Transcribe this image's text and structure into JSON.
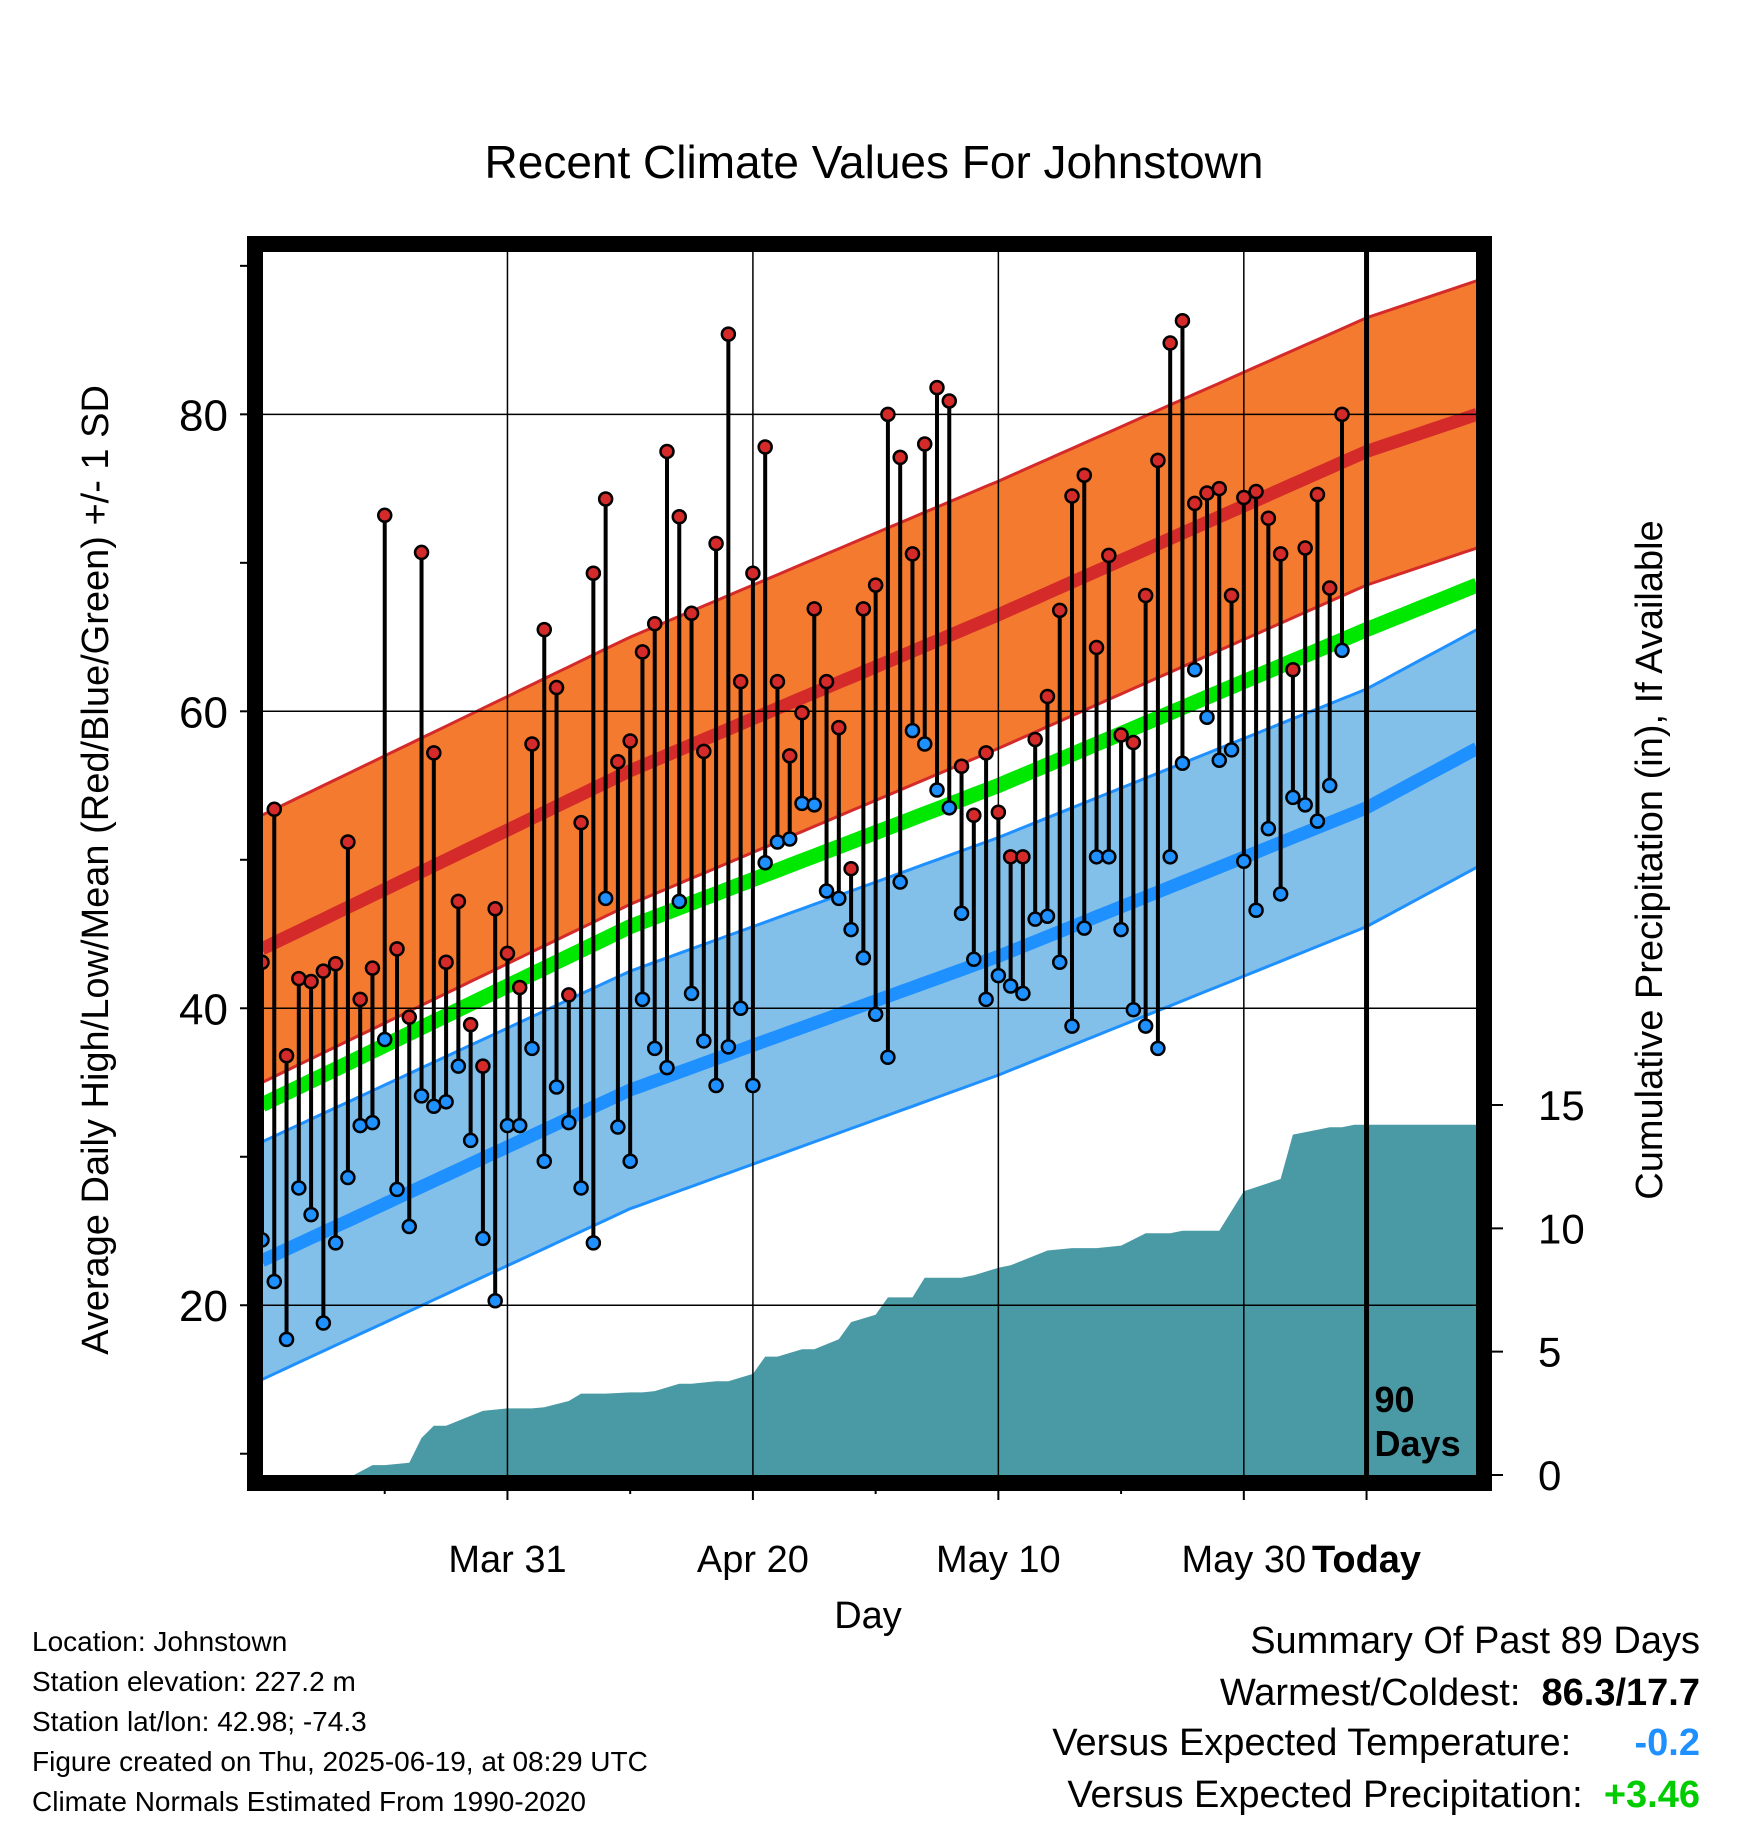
{
  "chart_data": {
    "type": "line",
    "title": "Recent Climate Values For Johnstown",
    "xlabel": "Day",
    "ylabel": "Average Daily High/Low/Mean (Red/Blue/Green) +/- 1 SD",
    "y2label": "Cumulative Precipitation (in), If Available",
    "x_tick_labels": [
      "Mar 31",
      "Apr 20",
      "May 10",
      "May 30",
      "Today"
    ],
    "y_ticks": [
      20,
      40,
      60,
      80
    ],
    "y2_ticks": [
      0,
      5,
      10,
      15
    ],
    "ylim": [
      8.5,
      91
    ],
    "y2lim": [
      0,
      15
    ],
    "x_domain_days": [
      -90,
      9
    ],
    "today_label": "90\nDays",
    "grid": true,
    "colors": {
      "high_band": "#f47a2f",
      "high_line": "#d42a2a",
      "low_band": "#82c0ea",
      "low_line": "#1e90ff",
      "mean_line": "#00e800",
      "precip": "#4a9aa5",
      "obs_high_dot": "#d42a2a",
      "obs_low_dot": "#1e90ff"
    },
    "normal_high": {
      "x": [
        -90,
        -60,
        -30,
        0,
        9
      ],
      "y": [
        44,
        56,
        66.5,
        77.5,
        80
      ]
    },
    "normal_low": {
      "x": [
        -90,
        -60,
        -30,
        0,
        9
      ],
      "y": [
        23,
        34.5,
        43.5,
        53.5,
        57.5
      ]
    },
    "normal_mean": {
      "x": [
        -90,
        -60,
        -30,
        0,
        9
      ],
      "y": [
        33.5,
        45.5,
        55,
        65.5,
        68.5
      ]
    },
    "sd_high": 9,
    "sd_low": 8,
    "observed_high": [
      43.1,
      53.4,
      36.8,
      42.0,
      41.8,
      42.5,
      43.0,
      51.2,
      40.6,
      42.7,
      73.2,
      44.0,
      39.4,
      70.7,
      57.2,
      43.1,
      47.2,
      38.9,
      36.1,
      46.7,
      43.7,
      41.4,
      57.8,
      65.5,
      61.6,
      40.9,
      52.5,
      69.3,
      74.3,
      56.6,
      58.0,
      64.0,
      65.9,
      77.5,
      73.1,
      66.6,
      57.3,
      71.3,
      85.4,
      62.0,
      69.3,
      77.8,
      62.0,
      57.0,
      59.9,
      66.9,
      62.0,
      58.9,
      49.4,
      66.9,
      68.5,
      80.0,
      77.1,
      70.6,
      78.0,
      81.8,
      80.9,
      56.3,
      53.0,
      57.2,
      53.2,
      50.2,
      50.2,
      58.1,
      61.0,
      66.8,
      74.5,
      75.9,
      64.3,
      70.5,
      58.4,
      57.9,
      67.8,
      76.9,
      84.8,
      86.3,
      74.0,
      74.7,
      75.0,
      67.8,
      74.4,
      74.8,
      73.0,
      70.6,
      62.8,
      71.0,
      74.6,
      68.3,
      80.0
    ],
    "observed_low": [
      24.4,
      21.6,
      17.7,
      27.9,
      26.1,
      18.8,
      24.2,
      28.6,
      32.1,
      32.3,
      37.9,
      27.8,
      25.3,
      34.1,
      33.4,
      33.7,
      36.1,
      31.1,
      24.5,
      20.3,
      32.1,
      32.1,
      37.3,
      29.7,
      34.7,
      32.3,
      27.9,
      24.2,
      47.4,
      32.0,
      29.7,
      40.6,
      37.3,
      36.0,
      47.2,
      41.0,
      37.8,
      34.8,
      37.4,
      40.0,
      34.8,
      49.8,
      51.2,
      51.4,
      53.8,
      53.7,
      47.9,
      47.4,
      45.3,
      43.4,
      39.6,
      36.7,
      48.5,
      58.7,
      57.8,
      54.7,
      53.5,
      46.4,
      43.3,
      40.6,
      42.2,
      41.5,
      41.0,
      46.0,
      46.2,
      43.1,
      38.8,
      45.4,
      50.2,
      50.2,
      45.3,
      39.9,
      38.8,
      37.3,
      50.2,
      56.5,
      62.8,
      59.6,
      56.7,
      57.4,
      49.9,
      46.6,
      52.1,
      47.7,
      54.2,
      53.7,
      52.6,
      55.0,
      64.1
    ],
    "cumulative_precip": {
      "x": [
        -90,
        -82.5,
        -81,
        -80,
        -78,
        -77,
        -76,
        -75,
        -72,
        -70,
        -68,
        -67,
        -65,
        -64,
        -62,
        -60,
        -59,
        -58,
        -56,
        -55,
        -53,
        -52,
        -50,
        -49,
        -48,
        -46,
        -45,
        -43,
        -42,
        -40,
        -39,
        -37,
        -36,
        -35,
        -33,
        -32,
        -30,
        -29,
        -26,
        -24,
        -22,
        -20,
        -18,
        -16,
        -15,
        -12,
        -10,
        -7,
        -6,
        -4,
        -3,
        -2,
        -1,
        9
      ],
      "y": [
        0,
        0,
        0.4,
        0.4,
        0.5,
        1.5,
        2.0,
        2.0,
        2.6,
        2.7,
        2.7,
        2.75,
        3.0,
        3.3,
        3.3,
        3.35,
        3.35,
        3.4,
        3.7,
        3.7,
        3.8,
        3.8,
        4.1,
        4.8,
        4.8,
        5.1,
        5.1,
        5.5,
        6.2,
        6.5,
        7.2,
        7.2,
        8.0,
        8.0,
        8.0,
        8.1,
        8.4,
        8.5,
        9.1,
        9.2,
        9.2,
        9.3,
        9.8,
        9.8,
        9.9,
        9.9,
        11.5,
        12.0,
        13.8,
        14.0,
        14.1,
        14.1,
        14.2,
        14.2
      ]
    }
  },
  "footer_info": {
    "location": "Location: Johnstown",
    "elevation": "Station elevation: 227.2 m",
    "latlon": "Station lat/lon: 42.98; -74.3",
    "created": "Figure created on Thu, 2025-06-19, at 08:29 UTC",
    "normals": "Climate Normals Estimated From 1990-2020"
  },
  "summary": {
    "title": "Summary Of Past 89 Days",
    "warmest_label": "Warmest/Coldest:",
    "warmest_value": "86.3/17.7",
    "temp_label": "Versus Expected Temperature:",
    "temp_value": "-0.2",
    "temp_color": "#1e90ff",
    "precip_label": "Versus Expected Precipitation:",
    "precip_value": "+3.46",
    "precip_color": "#00cc00"
  }
}
